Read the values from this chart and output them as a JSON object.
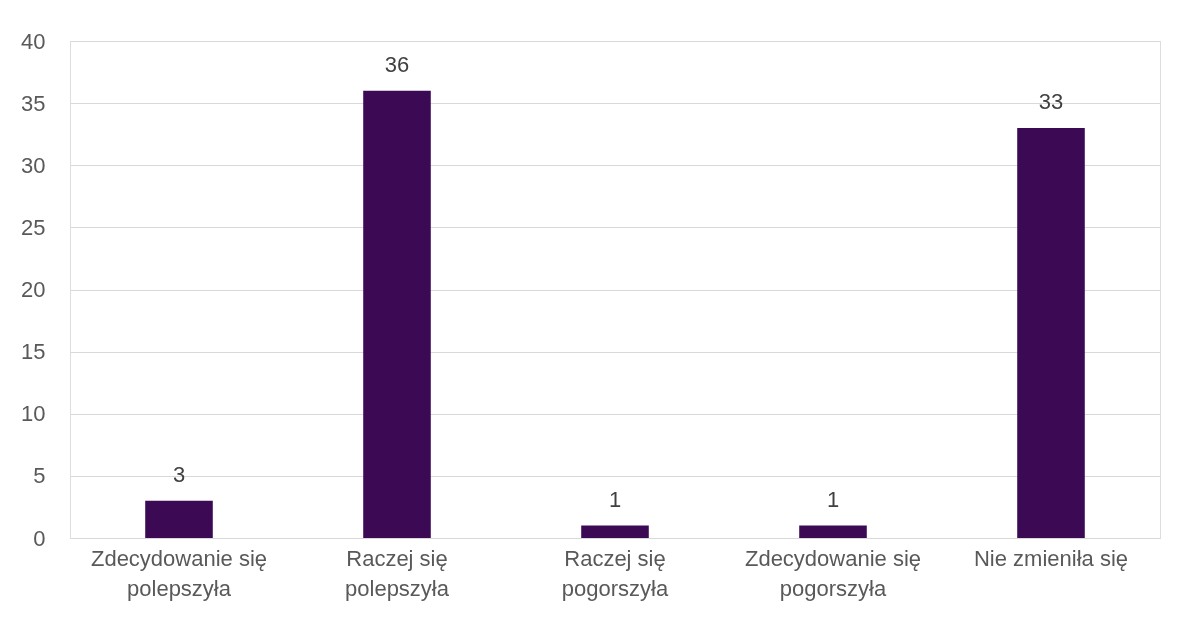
{
  "chart_data": {
    "type": "bar",
    "categories": [
      "Zdecydowanie się\npolepszyła",
      "Raczej się\npolepszyła",
      "Raczej się\npogorszyła",
      "Zdecydowanie się\npogorszyła",
      "Nie zmieniła się"
    ],
    "values": [
      3,
      36,
      1,
      1,
      33
    ],
    "color": "#3c0a55",
    "ylim": [
      0,
      40
    ],
    "yticks": [
      0,
      5,
      10,
      15,
      20,
      25,
      30,
      35,
      40
    ],
    "grid": "y",
    "data_labels": true
  }
}
